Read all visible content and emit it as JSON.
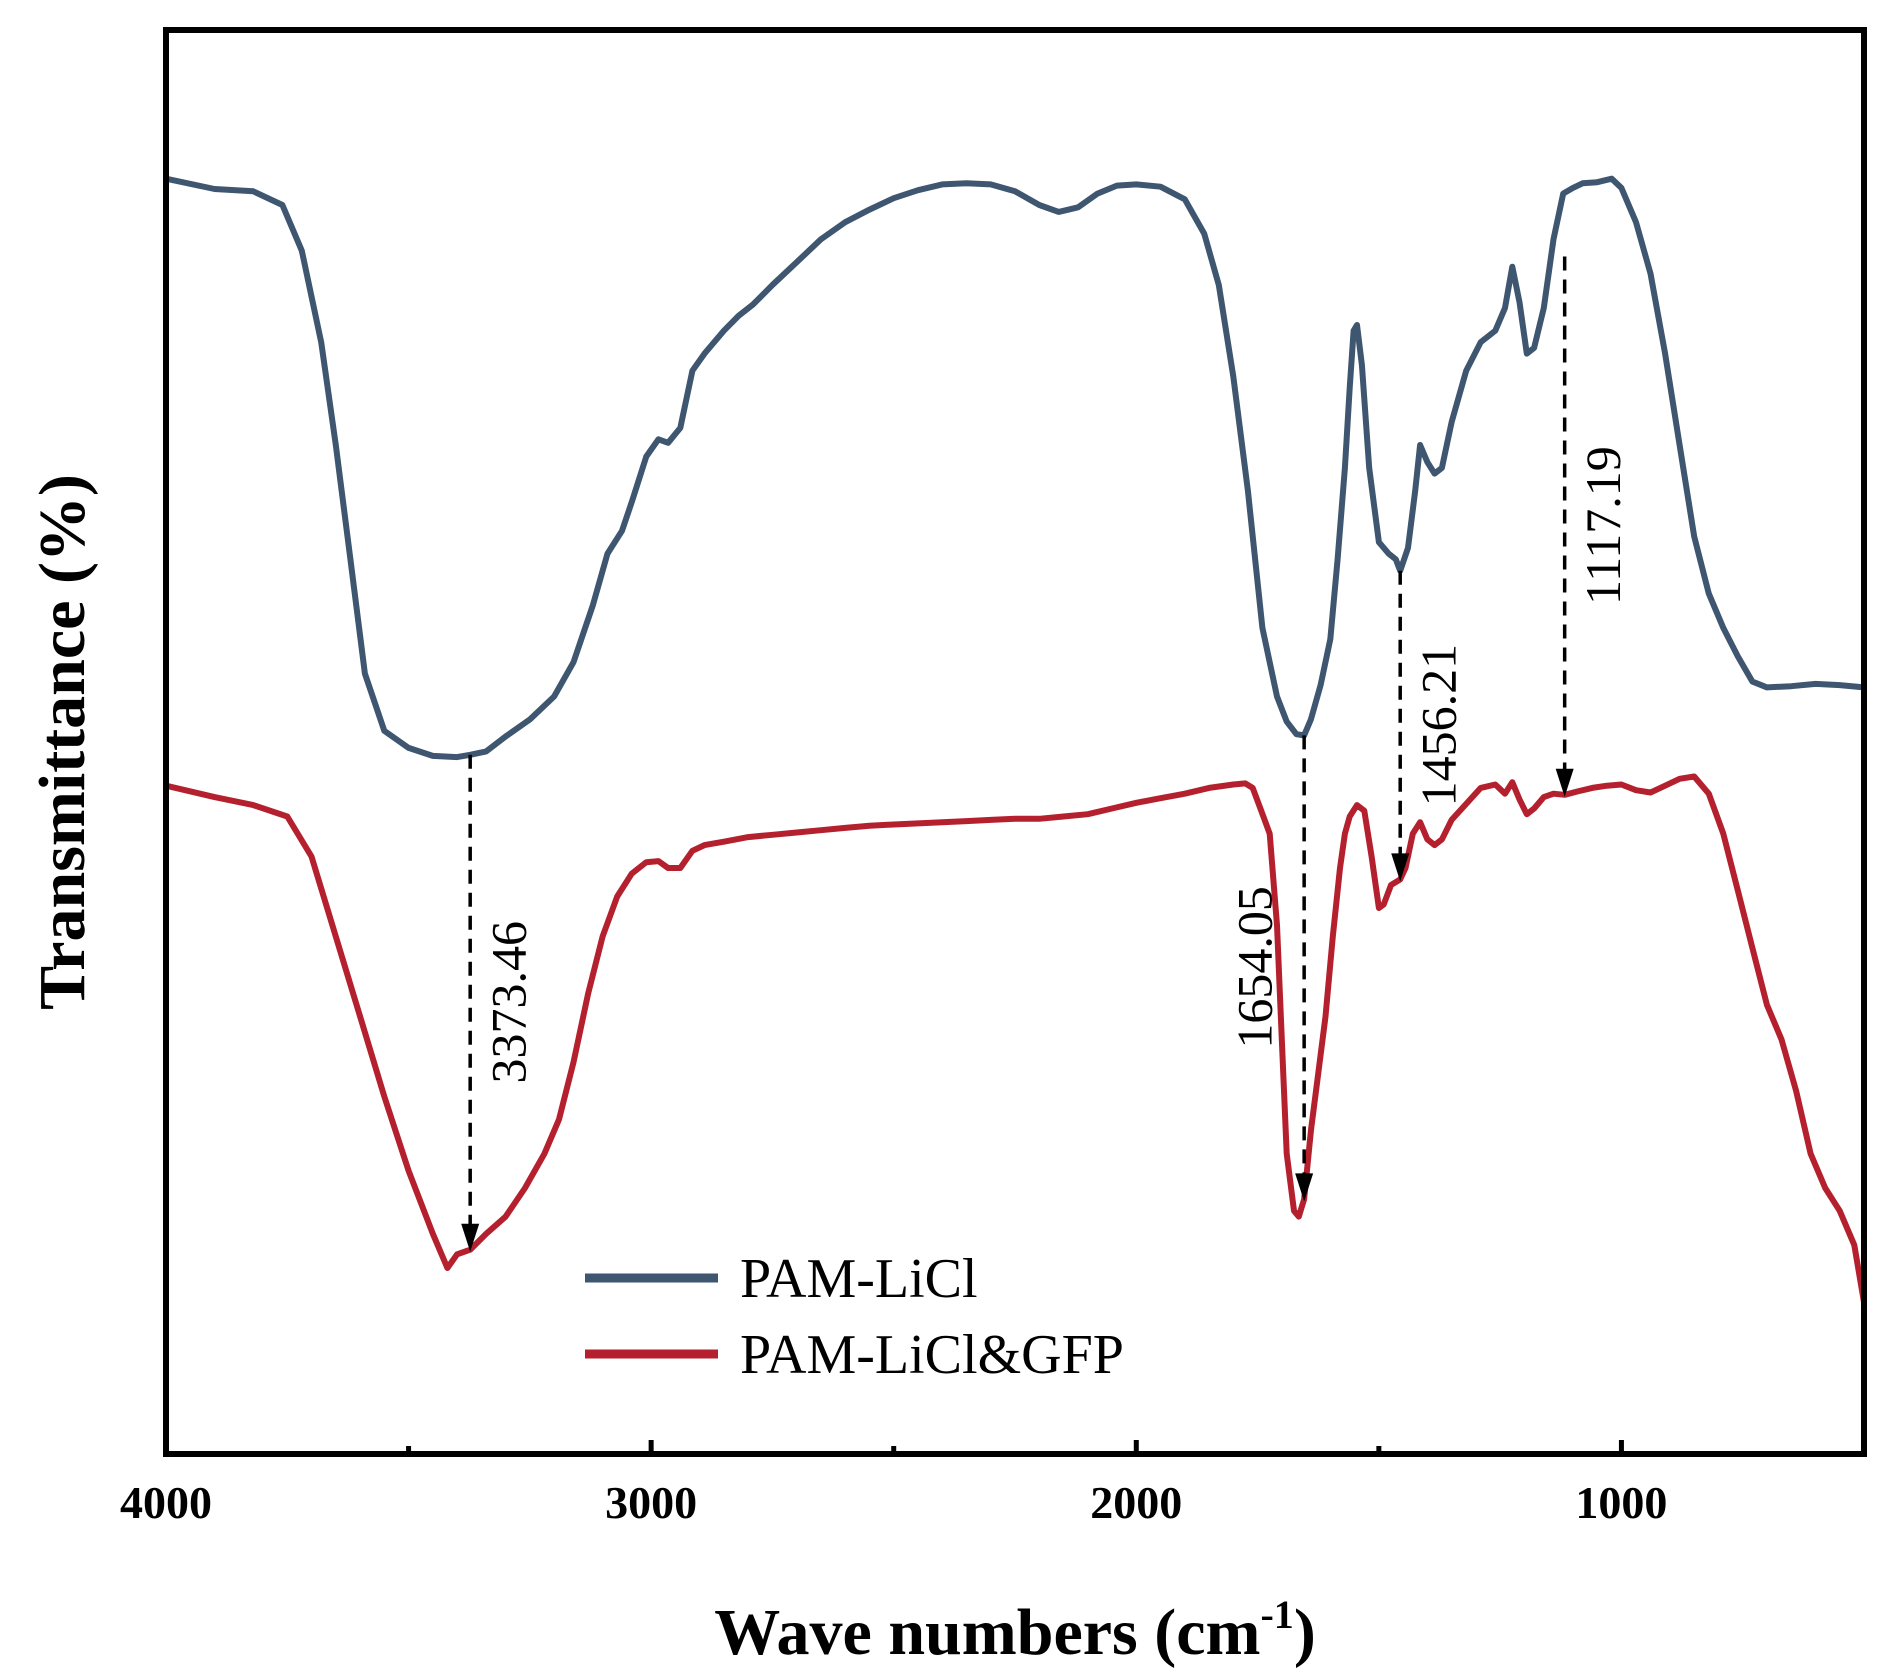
{
  "chart_data": {
    "type": "line",
    "title": "",
    "xlabel": "Wave numbers (cm",
    "xlabel_sup": "-1",
    "xlabel_close": ")",
    "ylabel": "Transmittance (%)",
    "xlim": [
      4000,
      500
    ],
    "x_reversed": true,
    "ylim": [
      0,
      1
    ],
    "x_ticks": [
      4000,
      3000,
      2000,
      1000
    ],
    "x_minor_ticks": [
      3500,
      2500,
      1500
    ],
    "y_ticks_shown": false,
    "grid": false,
    "legend_position": "bottom-center",
    "colors": {
      "PAM-LiCl": "#3f5670",
      "PAM-LiCl&GFP": "#b5202e",
      "axes": "#000000"
    },
    "series": [
      {
        "name": "PAM-LiCl",
        "points": [
          [
            4000,
            0.953
          ],
          [
            3900,
            0.944
          ],
          [
            3820,
            0.942
          ],
          [
            3760,
            0.93
          ],
          [
            3720,
            0.89
          ],
          [
            3680,
            0.81
          ],
          [
            3650,
            0.72
          ],
          [
            3620,
            0.62
          ],
          [
            3590,
            0.52
          ],
          [
            3550,
            0.47
          ],
          [
            3500,
            0.455
          ],
          [
            3450,
            0.448
          ],
          [
            3400,
            0.447
          ],
          [
            3373,
            0.449
          ],
          [
            3340,
            0.452
          ],
          [
            3300,
            0.465
          ],
          [
            3250,
            0.48
          ],
          [
            3200,
            0.5
          ],
          [
            3160,
            0.53
          ],
          [
            3120,
            0.58
          ],
          [
            3090,
            0.625
          ],
          [
            3060,
            0.645
          ],
          [
            3040,
            0.67
          ],
          [
            3010,
            0.71
          ],
          [
            2985,
            0.725
          ],
          [
            2965,
            0.722
          ],
          [
            2940,
            0.735
          ],
          [
            2915,
            0.785
          ],
          [
            2890,
            0.8
          ],
          [
            2850,
            0.82
          ],
          [
            2820,
            0.833
          ],
          [
            2790,
            0.843
          ],
          [
            2750,
            0.86
          ],
          [
            2700,
            0.88
          ],
          [
            2650,
            0.9
          ],
          [
            2600,
            0.915
          ],
          [
            2550,
            0.926
          ],
          [
            2500,
            0.936
          ],
          [
            2450,
            0.943
          ],
          [
            2400,
            0.948
          ],
          [
            2350,
            0.949
          ],
          [
            2300,
            0.948
          ],
          [
            2250,
            0.942
          ],
          [
            2200,
            0.93
          ],
          [
            2160,
            0.924
          ],
          [
            2120,
            0.928
          ],
          [
            2080,
            0.94
          ],
          [
            2040,
            0.947
          ],
          [
            2000,
            0.948
          ],
          [
            1950,
            0.946
          ],
          [
            1900,
            0.935
          ],
          [
            1860,
            0.905
          ],
          [
            1830,
            0.86
          ],
          [
            1800,
            0.78
          ],
          [
            1770,
            0.68
          ],
          [
            1740,
            0.56
          ],
          [
            1710,
            0.5
          ],
          [
            1690,
            0.478
          ],
          [
            1670,
            0.467
          ],
          [
            1654,
            0.466
          ],
          [
            1640,
            0.48
          ],
          [
            1620,
            0.51
          ],
          [
            1600,
            0.55
          ],
          [
            1585,
            0.62
          ],
          [
            1570,
            0.7
          ],
          [
            1560,
            0.77
          ],
          [
            1552,
            0.82
          ],
          [
            1545,
            0.825
          ],
          [
            1535,
            0.79
          ],
          [
            1520,
            0.7
          ],
          [
            1500,
            0.635
          ],
          [
            1480,
            0.625
          ],
          [
            1465,
            0.62
          ],
          [
            1456,
            0.61
          ],
          [
            1440,
            0.63
          ],
          [
            1425,
            0.68
          ],
          [
            1415,
            0.72
          ],
          [
            1400,
            0.705
          ],
          [
            1385,
            0.695
          ],
          [
            1370,
            0.7
          ],
          [
            1350,
            0.74
          ],
          [
            1320,
            0.785
          ],
          [
            1290,
            0.81
          ],
          [
            1260,
            0.82
          ],
          [
            1240,
            0.84
          ],
          [
            1225,
            0.876
          ],
          [
            1210,
            0.845
          ],
          [
            1195,
            0.8
          ],
          [
            1180,
            0.805
          ],
          [
            1160,
            0.84
          ],
          [
            1140,
            0.9
          ],
          [
            1120,
            0.94
          ],
          [
            1100,
            0.945
          ],
          [
            1080,
            0.949
          ],
          [
            1050,
            0.95
          ],
          [
            1020,
            0.953
          ],
          [
            1000,
            0.945
          ],
          [
            970,
            0.915
          ],
          [
            940,
            0.87
          ],
          [
            910,
            0.8
          ],
          [
            880,
            0.72
          ],
          [
            850,
            0.64
          ],
          [
            820,
            0.59
          ],
          [
            790,
            0.56
          ],
          [
            760,
            0.535
          ],
          [
            730,
            0.513
          ],
          [
            700,
            0.508
          ],
          [
            650,
            0.509
          ],
          [
            600,
            0.511
          ],
          [
            550,
            0.51
          ],
          [
            500,
            0.508
          ]
        ]
      },
      {
        "name": "PAM-LiCl&GFP",
        "points": [
          [
            4000,
            0.422
          ],
          [
            3900,
            0.412
          ],
          [
            3820,
            0.405
          ],
          [
            3750,
            0.395
          ],
          [
            3700,
            0.36
          ],
          [
            3650,
            0.29
          ],
          [
            3600,
            0.22
          ],
          [
            3550,
            0.15
          ],
          [
            3500,
            0.085
          ],
          [
            3450,
            0.03
          ],
          [
            3420,
            0.0
          ],
          [
            3400,
            0.012
          ],
          [
            3373,
            0.016
          ],
          [
            3340,
            0.03
          ],
          [
            3300,
            0.045
          ],
          [
            3260,
            0.07
          ],
          [
            3220,
            0.1
          ],
          [
            3190,
            0.13
          ],
          [
            3160,
            0.18
          ],
          [
            3130,
            0.24
          ],
          [
            3100,
            0.29
          ],
          [
            3070,
            0.325
          ],
          [
            3040,
            0.345
          ],
          [
            3010,
            0.355
          ],
          [
            2985,
            0.356
          ],
          [
            2965,
            0.35
          ],
          [
            2940,
            0.35
          ],
          [
            2915,
            0.365
          ],
          [
            2890,
            0.37
          ],
          [
            2850,
            0.373
          ],
          [
            2800,
            0.377
          ],
          [
            2750,
            0.379
          ],
          [
            2700,
            0.381
          ],
          [
            2650,
            0.383
          ],
          [
            2600,
            0.385
          ],
          [
            2550,
            0.387
          ],
          [
            2500,
            0.388
          ],
          [
            2450,
            0.389
          ],
          [
            2400,
            0.39
          ],
          [
            2350,
            0.391
          ],
          [
            2300,
            0.392
          ],
          [
            2250,
            0.393
          ],
          [
            2200,
            0.393
          ],
          [
            2150,
            0.395
          ],
          [
            2100,
            0.397
          ],
          [
            2050,
            0.402
          ],
          [
            2000,
            0.407
          ],
          [
            1950,
            0.411
          ],
          [
            1900,
            0.415
          ],
          [
            1850,
            0.42
          ],
          [
            1800,
            0.423
          ],
          [
            1775,
            0.424
          ],
          [
            1760,
            0.42
          ],
          [
            1745,
            0.403
          ],
          [
            1725,
            0.38
          ],
          [
            1710,
            0.3
          ],
          [
            1700,
            0.2
          ],
          [
            1690,
            0.1
          ],
          [
            1675,
            0.05
          ],
          [
            1665,
            0.045
          ],
          [
            1654,
            0.06
          ],
          [
            1640,
            0.12
          ],
          [
            1625,
            0.17
          ],
          [
            1610,
            0.22
          ],
          [
            1595,
            0.29
          ],
          [
            1580,
            0.35
          ],
          [
            1570,
            0.38
          ],
          [
            1560,
            0.395
          ],
          [
            1545,
            0.405
          ],
          [
            1530,
            0.4
          ],
          [
            1515,
            0.36
          ],
          [
            1500,
            0.315
          ],
          [
            1490,
            0.318
          ],
          [
            1475,
            0.335
          ],
          [
            1456,
            0.34
          ],
          [
            1445,
            0.35
          ],
          [
            1430,
            0.38
          ],
          [
            1415,
            0.39
          ],
          [
            1400,
            0.375
          ],
          [
            1385,
            0.37
          ],
          [
            1370,
            0.375
          ],
          [
            1350,
            0.392
          ],
          [
            1320,
            0.406
          ],
          [
            1290,
            0.42
          ],
          [
            1260,
            0.423
          ],
          [
            1240,
            0.415
          ],
          [
            1225,
            0.425
          ],
          [
            1210,
            0.41
          ],
          [
            1195,
            0.397
          ],
          [
            1180,
            0.402
          ],
          [
            1160,
            0.412
          ],
          [
            1140,
            0.415
          ],
          [
            1117,
            0.414
          ],
          [
            1090,
            0.417
          ],
          [
            1060,
            0.42
          ],
          [
            1030,
            0.422
          ],
          [
            1000,
            0.423
          ],
          [
            970,
            0.418
          ],
          [
            940,
            0.416
          ],
          [
            910,
            0.422
          ],
          [
            880,
            0.428
          ],
          [
            850,
            0.43
          ],
          [
            820,
            0.415
          ],
          [
            790,
            0.38
          ],
          [
            760,
            0.33
          ],
          [
            730,
            0.28
          ],
          [
            700,
            0.23
          ],
          [
            670,
            0.2
          ],
          [
            640,
            0.155
          ],
          [
            610,
            0.1
          ],
          [
            580,
            0.07
          ],
          [
            550,
            0.05
          ],
          [
            520,
            0.02
          ],
          [
            500,
            -0.03
          ]
        ]
      }
    ],
    "annotations": [
      {
        "label": "3373.46",
        "x": 3373,
        "from": 0.449,
        "to": 0.016,
        "label_side": "right"
      },
      {
        "label": "1654.05",
        "x": 1654,
        "from": 0.466,
        "to": 0.06,
        "label_side": "left"
      },
      {
        "label": "1456.21",
        "x": 1456,
        "from": 0.61,
        "to": 0.34,
        "label_side": "right"
      },
      {
        "label": "1117.19",
        "x": 1117,
        "from": 0.885,
        "to": 0.414,
        "label_side": "right"
      }
    ]
  }
}
